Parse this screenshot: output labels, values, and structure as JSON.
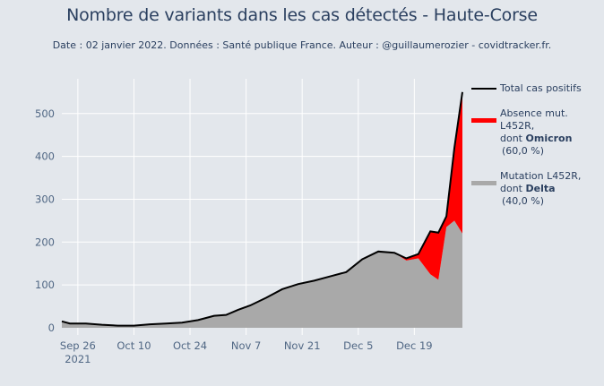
{
  "header": {
    "title": "Nombre de variants dans les cas détectés - Haute-Corse",
    "subtitle": "Date : 02 janvier 2022. Données : Santé publique France. Auteur : @guillaumerozier - covidtracker.fr."
  },
  "legend": {
    "total": "Total cas positifs",
    "omicron_prefix": "Absence mut. L452R,",
    "omicron_dont": "dont ",
    "omicron_name": "Omicron",
    "omicron_pct": "(60,0 %)",
    "delta_prefix": "Mutation L452R,",
    "delta_dont": "dont ",
    "delta_name": "Delta",
    "delta_pct": "(40,0 %)"
  },
  "colors": {
    "background": "#e3e7ec",
    "grid": "#ffffff",
    "total_line": "#000000",
    "omicron": "#ff0000",
    "delta": "#a9a9a9",
    "text": "#2a3f5f"
  },
  "axes": {
    "y_ticks": [
      "0",
      "100",
      "200",
      "300",
      "400",
      "500"
    ],
    "x_ticks": [
      "Sep 26",
      "Oct 10",
      "Oct 24",
      "Nov 7",
      "Nov 21",
      "Dec 5",
      "Dec 19"
    ],
    "x_year": "2021"
  },
  "chart_data": {
    "type": "area",
    "title": "Nombre de variants dans les cas détectés - Haute-Corse",
    "subtitle": "Date : 02 janvier 2022. Données : Santé publique France. Auteur : @guillaumerozier - covidtracker.fr.",
    "xlabel": "",
    "ylabel": "",
    "ylim": [
      0,
      560
    ],
    "xlim": [
      "2021-09-22",
      "2021-12-31"
    ],
    "grid": true,
    "legend_position": "right",
    "x": [
      "2021-09-22",
      "2021-09-24",
      "2021-09-28",
      "2021-10-02",
      "2021-10-06",
      "2021-10-10",
      "2021-10-14",
      "2021-10-18",
      "2021-10-22",
      "2021-10-26",
      "2021-10-30",
      "2021-11-02",
      "2021-11-05",
      "2021-11-08",
      "2021-11-12",
      "2021-11-16",
      "2021-11-20",
      "2021-11-24",
      "2021-11-28",
      "2021-12-02",
      "2021-12-06",
      "2021-12-10",
      "2021-12-14",
      "2021-12-17",
      "2021-12-20",
      "2021-12-23",
      "2021-12-25",
      "2021-12-27",
      "2021-12-29",
      "2021-12-31"
    ],
    "series": [
      {
        "name": "Total cas positifs",
        "values": [
          15,
          10,
          10,
          7,
          5,
          5,
          8,
          10,
          12,
          18,
          28,
          30,
          42,
          52,
          70,
          90,
          102,
          110,
          120,
          130,
          160,
          178,
          175,
          162,
          172,
          225,
          222,
          260,
          420,
          550
        ]
      },
      {
        "name": "Absence mut. L452R, dont Omicron (60,0 %)",
        "values": [
          0,
          0,
          0,
          0,
          0,
          0,
          0,
          0,
          0,
          0,
          0,
          0,
          0,
          0,
          0,
          0,
          0,
          0,
          0,
          0,
          0,
          0,
          0,
          5,
          10,
          100,
          110,
          25,
          170,
          330
        ]
      },
      {
        "name": "Mutation L452R, dont Delta (40,0 %)",
        "values": [
          15,
          10,
          10,
          7,
          5,
          5,
          8,
          10,
          12,
          18,
          28,
          30,
          42,
          52,
          70,
          90,
          102,
          110,
          120,
          130,
          160,
          178,
          175,
          157,
          162,
          125,
          112,
          235,
          250,
          220
        ]
      }
    ]
  }
}
